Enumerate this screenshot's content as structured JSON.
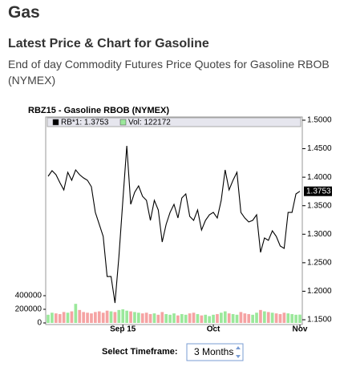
{
  "header": {
    "title": "Gas",
    "subtitle": "Latest Price & Chart for Gasoline",
    "description": "End of day Commodity Futures Price Quotes for Gasoline RBOB (NYMEX)"
  },
  "chart_data": {
    "type": "line",
    "title": "RBZ15 - Gasoline RBOB (NYMEX)",
    "categories": [
      null,
      null,
      null,
      null,
      null,
      null,
      null,
      null,
      null,
      null,
      null,
      null,
      null,
      null,
      null,
      null,
      null,
      null,
      null,
      "Sep 15",
      null,
      null,
      null,
      null,
      null,
      null,
      null,
      null,
      null,
      null,
      null,
      null,
      null,
      null,
      null,
      null,
      null,
      null,
      null,
      null,
      null,
      null,
      "Oct",
      null,
      null,
      null,
      null,
      null,
      null,
      null,
      null,
      null,
      null,
      null,
      null,
      null,
      null,
      null,
      null,
      null,
      null,
      null,
      null,
      null,
      "Nov"
    ],
    "series": [
      {
        "name": "RB*1: 1.3753",
        "color": "#000000",
        "values": [
          1.4016,
          1.4114,
          1.4044,
          1.3904,
          1.3777,
          1.4086,
          1.3946,
          1.4128,
          1.4044,
          1.3988,
          1.3946,
          1.3833,
          1.3383,
          1.3173,
          1.2962,
          1.2259,
          1.2259,
          1.1795,
          1.261,
          1.3594,
          1.455,
          1.3524,
          1.3735,
          1.3847,
          1.3665,
          1.3594,
          1.3243,
          1.3594,
          1.3426,
          1.2863,
          1.3173,
          1.3383,
          1.3524,
          1.3285,
          1.3636,
          1.3707,
          1.3313,
          1.3243,
          1.3426,
          1.3074,
          1.3243,
          1.3341,
          1.3383,
          1.3285,
          1.3594,
          1.4128,
          1.3777,
          1.3946,
          1.4086,
          1.3383,
          1.3285,
          1.3215,
          1.3243,
          1.3341,
          1.2681,
          1.2934,
          1.2892,
          1.306,
          1.2962,
          1.2793,
          1.2751,
          1.3383,
          1.3383,
          1.3707,
          1.3753
        ]
      },
      {
        "name": "Vol: 122172",
        "color": "#9be89b",
        "down_color": "#f5a3a3",
        "axis": "y2",
        "type": "bar",
        "values": [
          120000,
          150000,
          140000,
          130000,
          160000,
          150000,
          170000,
          280000,
          190000,
          160000,
          150000,
          140000,
          160000,
          170000,
          150000,
          180000,
          170000,
          160000,
          190000,
          200000,
          180000,
          170000,
          160000,
          150000,
          140000,
          150000,
          130000,
          140000,
          120000,
          160000,
          130000,
          120000,
          140000,
          110000,
          130000,
          120000,
          140000,
          150000,
          130000,
          110000,
          120000,
          100000,
          120000,
          130000,
          150000,
          170000,
          140000,
          130000,
          120000,
          160000,
          140000,
          130000,
          120000,
          150000,
          190000,
          170000,
          160000,
          150000,
          140000,
          130000,
          150000,
          140000,
          130000,
          120000,
          122172
        ]
      }
    ],
    "ylim": [
      1.1416,
      1.5056
    ],
    "yticks": [
      {
        "value": 1.15,
        "label": "1.1500"
      },
      {
        "value": 1.2,
        "label": "1.2000"
      },
      {
        "value": 1.25,
        "label": "1.2500"
      },
      {
        "value": 1.3,
        "label": "1.3000"
      },
      {
        "value": 1.35,
        "label": "1.3500"
      },
      {
        "value": 1.4,
        "label": "1.4000"
      },
      {
        "value": 1.45,
        "label": "1.4500"
      },
      {
        "value": 1.5,
        "label": "1.5000"
      }
    ],
    "y2lim": [
      0,
      500000
    ],
    "y2ticks": [
      0,
      200000,
      400000
    ],
    "last_label": "1.3753"
  },
  "controls": {
    "timeframe_label": "Select Timeframe:",
    "timeframe_value": "3 Months"
  }
}
